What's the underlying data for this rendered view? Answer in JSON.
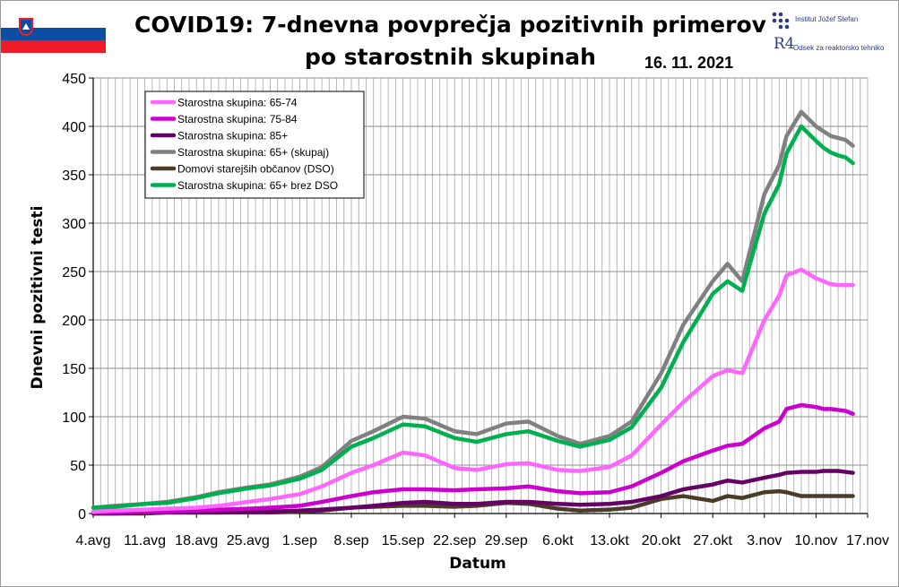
{
  "header": {
    "title_line1": "COVID19: 7-dnevna povprečja pozitivnih primerov",
    "title_line2": "po starostnih skupinah",
    "date": "16. 11. 2021",
    "logo1_label": "Institut Jožef Stefan",
    "logo2_mark": "R4",
    "logo2_label": "Odsek za reaktorsko tehniko"
  },
  "chart_data": {
    "type": "line",
    "title": "COVID19: 7-dnevna povprečja pozitivnih primerov po starostnih skupinah",
    "xlabel": "Datum",
    "ylabel": "Dnevni pozitivni testi",
    "ylim": [
      0,
      450
    ],
    "yticks": [
      0,
      50,
      100,
      150,
      200,
      250,
      300,
      350,
      400,
      450
    ],
    "xlim": [
      "2021-08-04",
      "2021-11-17"
    ],
    "xticks": [
      "4.avg",
      "11.avg",
      "18.avg",
      "25.avg",
      "1.sep",
      "8.sep",
      "15.sep",
      "22.sep",
      "29.sep",
      "6.okt",
      "13.okt",
      "20.okt",
      "27.okt",
      "3.nov",
      "10.nov",
      "17.nov"
    ],
    "grid": true,
    "grid_step_days": 1,
    "legend_position": "top-left",
    "x": [
      "2021-08-04",
      "2021-08-07",
      "2021-08-11",
      "2021-08-14",
      "2021-08-18",
      "2021-08-21",
      "2021-08-25",
      "2021-08-28",
      "2021-09-01",
      "2021-09-04",
      "2021-09-08",
      "2021-09-11",
      "2021-09-15",
      "2021-09-18",
      "2021-09-22",
      "2021-09-25",
      "2021-09-29",
      "2021-10-02",
      "2021-10-06",
      "2021-10-09",
      "2021-10-13",
      "2021-10-16",
      "2021-10-20",
      "2021-10-23",
      "2021-10-27",
      "2021-10-29",
      "2021-10-31",
      "2021-11-03",
      "2021-11-05",
      "2021-11-06",
      "2021-11-08",
      "2021-11-10",
      "2021-11-11",
      "2021-11-12",
      "2021-11-13",
      "2021-11-14",
      "2021-11-15"
    ],
    "series": [
      {
        "name": "Starostna skupina: 65-74",
        "color": "#ff66ff",
        "values": [
          2,
          3,
          4,
          5,
          6,
          8,
          12,
          15,
          20,
          28,
          42,
          50,
          63,
          60,
          47,
          45,
          51,
          52,
          45,
          44,
          48,
          60,
          92,
          115,
          142,
          148,
          145,
          200,
          225,
          246,
          252,
          243,
          240,
          237,
          236,
          236,
          236
        ]
      },
      {
        "name": "Starostna skupina: 75-84",
        "color": "#cc00cc",
        "values": [
          1,
          1,
          2,
          2,
          3,
          4,
          5,
          6,
          8,
          12,
          18,
          22,
          25,
          25,
          24,
          25,
          26,
          28,
          23,
          21,
          22,
          28,
          42,
          54,
          65,
          70,
          72,
          88,
          95,
          108,
          112,
          110,
          108,
          108,
          107,
          106,
          103
        ]
      },
      {
        "name": "Starostna skupina: 85+",
        "color": "#660066",
        "values": [
          0,
          0,
          1,
          1,
          1,
          1,
          2,
          2,
          3,
          4,
          6,
          8,
          11,
          12,
          10,
          10,
          12,
          12,
          10,
          9,
          10,
          12,
          18,
          25,
          30,
          34,
          32,
          37,
          40,
          42,
          43,
          43,
          44,
          44,
          44,
          43,
          42
        ]
      },
      {
        "name": "Starostna skupina: 65+ (skupaj)",
        "color": "#808080",
        "values": [
          6,
          8,
          10,
          12,
          17,
          22,
          27,
          30,
          38,
          48,
          75,
          85,
          100,
          98,
          85,
          82,
          93,
          95,
          80,
          72,
          80,
          95,
          145,
          195,
          240,
          258,
          240,
          330,
          360,
          390,
          415,
          400,
          395,
          390,
          388,
          386,
          380
        ]
      },
      {
        "name": "Domovi starejših občanov (DSO)",
        "color": "#4a3c28",
        "values": [
          0,
          0,
          0,
          1,
          1,
          1,
          1,
          1,
          2,
          3,
          6,
          7,
          8,
          8,
          7,
          8,
          11,
          10,
          5,
          3,
          4,
          6,
          15,
          18,
          13,
          18,
          16,
          22,
          23,
          22,
          18,
          18,
          18,
          18,
          18,
          18,
          18
        ]
      },
      {
        "name": "Starostna skupina: 65+ brez DSO",
        "color": "#00b050",
        "values": [
          6,
          7,
          10,
          11,
          16,
          21,
          26,
          29,
          36,
          45,
          69,
          78,
          92,
          90,
          78,
          74,
          82,
          85,
          75,
          69,
          76,
          89,
          130,
          177,
          227,
          240,
          230,
          310,
          340,
          372,
          400,
          385,
          378,
          373,
          370,
          368,
          362
        ]
      }
    ]
  }
}
